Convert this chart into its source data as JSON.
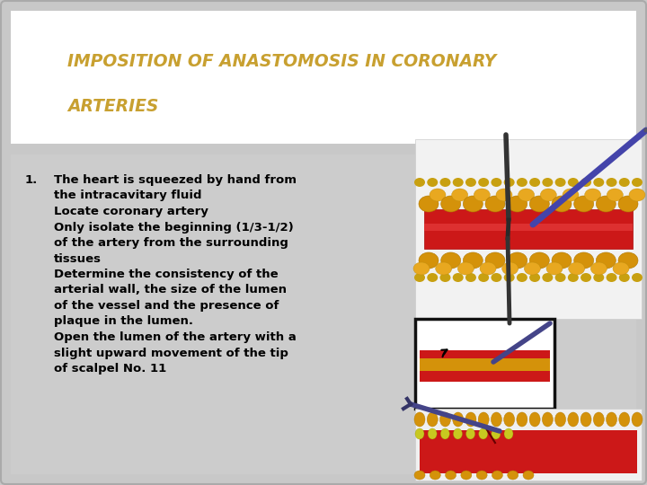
{
  "title_line1": "IMPOSITION OF ANASTOMOSIS IN CORONARY",
  "title_line2": "ARTERIES",
  "title_color": "#C8A030",
  "title_fontsize": 13.5,
  "title_style": "italic",
  "title_weight": "bold",
  "bg_color": "#C8C8C8",
  "slide_bg": "#C8C8C8",
  "header_bg": "#FFFFFF",
  "text_color": "#000000",
  "bullet_number": "1.",
  "body_lines": [
    "The heart is squeezed by hand from",
    "the intracavitary fluid",
    "Locate coronary artery",
    "Only isolate the beginning (1/3-1/2)",
    "of the artery from the surrounding",
    "tissues",
    "Determine the consistency of the",
    "arterial wall, the size of the lumen",
    "of the vessel and the presence of",
    "plaque in the lumen.",
    "Open the lumen of the artery with a",
    "slight upward movement of the tip",
    "of scalpel No. 11"
  ],
  "body_fontsize": 9.5,
  "body_weight": "bold"
}
